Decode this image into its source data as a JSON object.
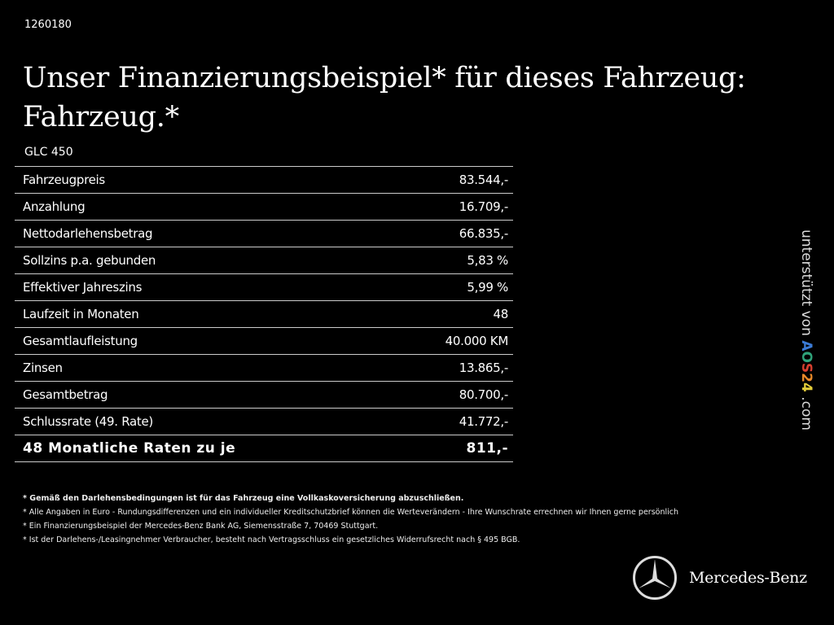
{
  "code": "1260180",
  "title_line1": "Unser Finanzierungsbeispiel* für dieses Fahrzeug:",
  "title_line2": "Fahrzeug.*",
  "model": "GLC 450",
  "rows": [
    {
      "label": "Fahrzeugpreis",
      "value": "83.544,-"
    },
    {
      "label": "Anzahlung",
      "value": "16.709,-"
    },
    {
      "label": "Nettodarlehensbetrag",
      "value": "66.835,-"
    },
    {
      "label": "Sollzins p.a. gebunden",
      "value": "5,83 %"
    },
    {
      "label": "Effektiver Jahreszins",
      "value": "5,99 %"
    },
    {
      "label": "Laufzeit in Monaten",
      "value": "48"
    },
    {
      "label": "Gesamtlaufleistung",
      "value": "40.000 KM"
    },
    {
      "label": "Zinsen",
      "value": "13.865,-"
    },
    {
      "label": "Gesamtbetrag",
      "value": "80.700,-"
    },
    {
      "label": "Schlussrate (49. Rate)",
      "value": "41.772,-"
    },
    {
      "label": "48 Monatliche Raten zu je",
      "value": "811,-"
    }
  ],
  "notes": [
    "* Gemäß den Darlehensbedingungen ist für das Fahrzeug eine Vollkaskoversicherung abzuschließen.",
    "* Alle Angaben in Euro - Rundungsdifferenzen und ein individueller Kreditschutzbrief können die Werteverändern - Ihre Wunschrate errechnen wir Ihnen gerne persönlich",
    "* Ein Finanzierungsbeispiel der Mercedes-Benz Bank AG, Siemensstraße 7, 70469 Stuttgart.",
    "* Ist der Darlehens-/Leasingnehmer Verbraucher, besteht nach Vertragsschluss ein gesetzliches Widerrufsrecht nach § 495 BGB."
  ],
  "side": {
    "prefix": "unterstützt von ",
    "logo": [
      "A",
      "O",
      "S",
      "2",
      "4"
    ],
    "suffix": " .com"
  },
  "logo_colors": [
    "#3b7bd6",
    "#2fa37a",
    "#d8402f",
    "#e88a2a",
    "#e6cf3a"
  ],
  "brand": "Mercedes-Benz"
}
